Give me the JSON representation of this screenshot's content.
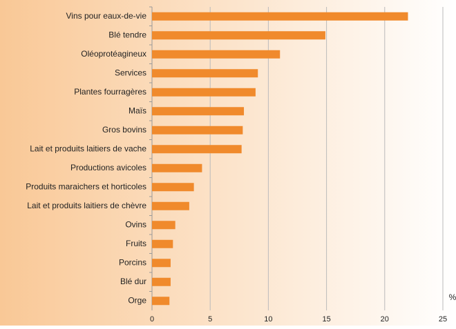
{
  "chart_data": {
    "type": "barh",
    "xlabel": "%",
    "categories": [
      "Vins pour eaux-de-vie",
      "Blé tendre",
      "Oléoprotéagineux",
      "Services",
      "Plantes fourragères",
      "Maïs",
      "Gros bovins",
      "Lait et produits laitiers de vache",
      "Productions avicoles",
      "Produits maraichers et horticoles",
      "Lait et produits laitiers de chèvre",
      "Ovins",
      "Fruits",
      "Porcins",
      "Blé dur",
      "Orge"
    ],
    "values": [
      22.0,
      14.9,
      11.0,
      9.1,
      8.9,
      7.9,
      7.8,
      7.7,
      4.3,
      3.6,
      3.2,
      2.0,
      1.8,
      1.6,
      1.6,
      1.5
    ],
    "color": "#f08a2c",
    "xlim": [
      0,
      25
    ],
    "xticks": [
      0,
      5,
      10,
      15,
      20,
      25
    ],
    "grid": true
  }
}
